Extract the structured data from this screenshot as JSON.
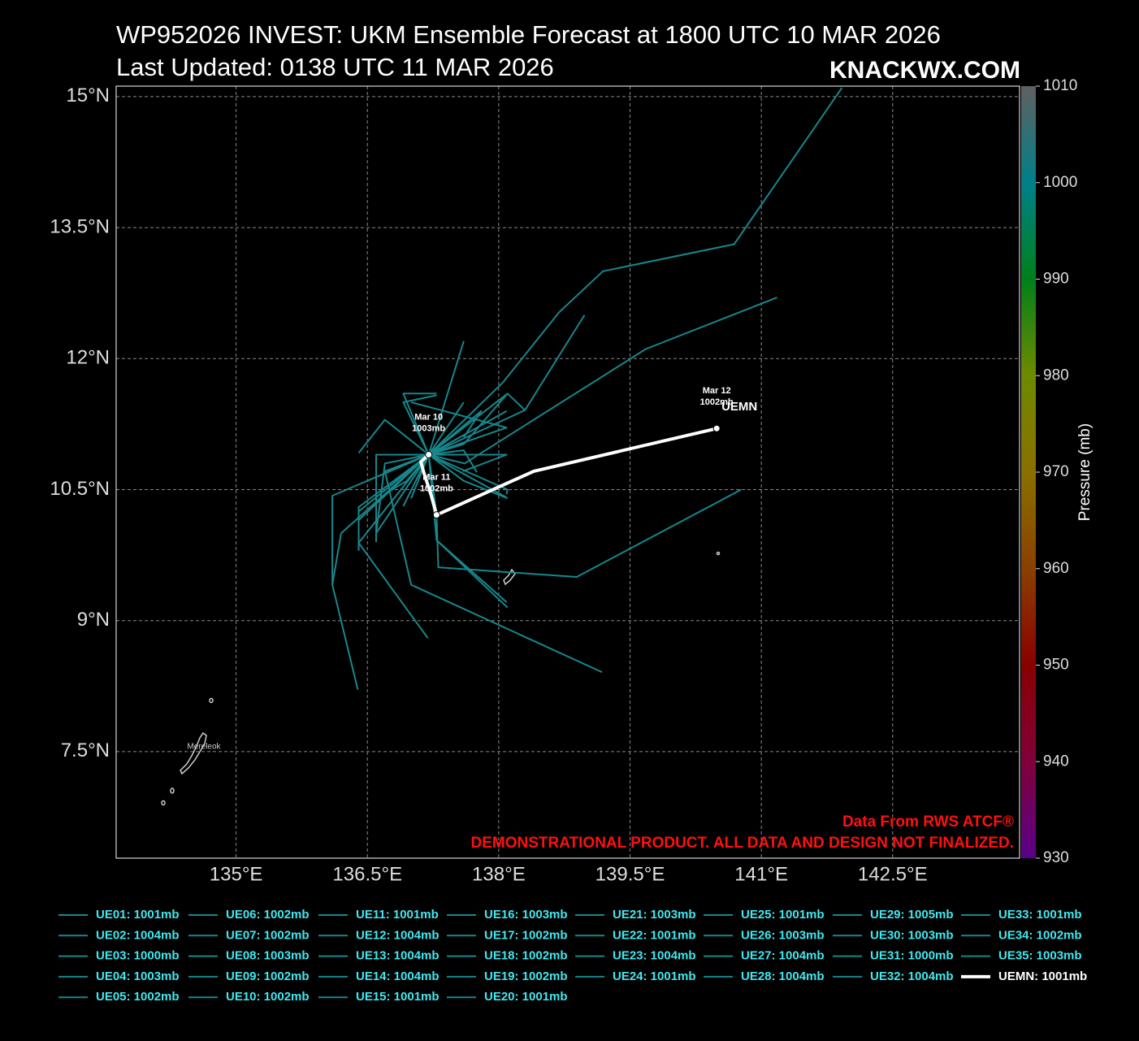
{
  "chart_data": {
    "type": "map",
    "title": "WP952026 INVEST: UKM Ensemble Forecast at 1800 UTC 10 MAR 2026",
    "subtitle": "Last Updated: 0138 UTC 11 MAR 2026",
    "brand": "KNACKWX.COM",
    "notes": [
      "Data From RWS ATCF®",
      "DEMONSTRATIONAL PRODUCT. ALL DATA AND DESIGN NOT FINALIZED."
    ],
    "map_labels": [
      "Mereleok"
    ],
    "xlim": [
      133.63,
      143.95
    ],
    "ylim": [
      6.28,
      15.12
    ],
    "xticks": [
      {
        "value": 135,
        "label": "135°E"
      },
      {
        "value": 136.5,
        "label": "136.5°E"
      },
      {
        "value": 138,
        "label": "138°E"
      },
      {
        "value": 139.5,
        "label": "139.5°E"
      },
      {
        "value": 141,
        "label": "141°E"
      },
      {
        "value": 142.5,
        "label": "142.5°E"
      }
    ],
    "yticks": [
      {
        "value": 7.5,
        "label": "7.5°N"
      },
      {
        "value": 9,
        "label": "9°N"
      },
      {
        "value": 10.5,
        "label": "10.5°N"
      },
      {
        "value": 12,
        "label": "12°N"
      },
      {
        "value": 13.5,
        "label": "13.5°N"
      },
      {
        "value": 15,
        "label": "15°N"
      }
    ],
    "grid": true,
    "colorbar": {
      "label": "Pressure (mb)",
      "lim": [
        930,
        1010
      ],
      "ticks": [
        930,
        940,
        950,
        960,
        970,
        980,
        990,
        1000,
        1010
      ],
      "colors": [
        "#5a008a",
        "#80003a",
        "#8a0000",
        "#8a4000",
        "#8a7000",
        "#6e8a00",
        "#00801a",
        "#00808a",
        "#606060"
      ]
    },
    "series": [
      {
        "name": "UE01: 1001mb",
        "color": "#17878c",
        "x": [
          137.2,
          138.05,
          138.69,
          139.19,
          140.69,
          141.92
        ],
        "values": [
          10.9,
          11.73,
          12.53,
          13.0,
          13.31,
          15.1
        ]
      },
      {
        "name": "UE02: 1004mb",
        "color": "#17878c",
        "x": [
          137.2,
          137.61,
          139.68,
          141.18
        ],
        "values": [
          10.9,
          10.8,
          12.11,
          12.7
        ]
      },
      {
        "name": "UE03: 1000mb",
        "color": "#17878c",
        "x": [
          137.2,
          137.29,
          137.31,
          138.89,
          140.77
        ],
        "values": [
          10.9,
          10.21,
          9.61,
          9.5,
          10.5
        ]
      },
      {
        "name": "UE04: 1003mb",
        "color": "#17878c",
        "x": [
          137.2,
          137.29,
          137.29,
          138.09
        ],
        "values": [
          10.9,
          10.21,
          9.92,
          9.21
        ]
      },
      {
        "name": "UE05: 1002mb",
        "color": "#17878c",
        "x": [
          137.2,
          136.7,
          137.0,
          139.18
        ],
        "values": [
          10.9,
          10.71,
          9.41,
          8.41
        ]
      },
      {
        "name": "UE06: 1002mb",
        "color": "#17878c",
        "x": [
          137.2,
          136.1,
          136.1,
          136.39
        ],
        "values": [
          10.9,
          10.43,
          9.41,
          8.21
        ]
      },
      {
        "name": "UE07: 1002mb",
        "color": "#17878c",
        "x": [
          137.2,
          136.4,
          137.19
        ],
        "values": [
          10.9,
          9.89,
          8.8
        ]
      },
      {
        "name": "UE08: 1003mb",
        "color": "#17878c",
        "x": [
          137.2,
          136.7,
          136.4
        ],
        "values": [
          10.9,
          11.3,
          10.92
        ]
      },
      {
        "name": "UE09: 1002mb",
        "color": "#17878c",
        "x": [
          137.2,
          137.6
        ],
        "values": [
          10.9,
          12.2
        ]
      },
      {
        "name": "UE10: 1002mb",
        "color": "#17878c",
        "x": [
          137.2,
          138.3,
          138.98
        ],
        "values": [
          10.9,
          11.41,
          12.5
        ]
      },
      {
        "name": "UE11: 1001mb",
        "color": "#17878c",
        "x": [
          137.2,
          138.09,
          137.0
        ],
        "values": [
          10.9,
          11.21,
          11.5
        ]
      },
      {
        "name": "UE12: 1004mb",
        "color": "#17878c",
        "x": [
          137.2,
          136.91,
          137.29
        ],
        "values": [
          10.9,
          11.6,
          11.6
        ]
      },
      {
        "name": "UE13: 1004mb",
        "color": "#17878c",
        "x": [
          137.2,
          136.6,
          136.6
        ],
        "values": [
          10.9,
          10.9,
          9.9
        ]
      },
      {
        "name": "UE14: 1004mb",
        "color": "#17878c",
        "x": [
          137.2,
          138.09,
          137.59
        ],
        "values": [
          10.9,
          10.9,
          10.71
        ]
      },
      {
        "name": "UE15: 1001mb",
        "color": "#17878c",
        "x": [
          137.2,
          136.2,
          136.1
        ],
        "values": [
          10.9,
          10.0,
          9.41
        ]
      },
      {
        "name": "UE16: 1003mb",
        "color": "#17878c",
        "x": [
          137.2,
          138.09
        ],
        "values": [
          10.9,
          11.4
        ]
      },
      {
        "name": "UE17: 1002mb",
        "color": "#17878c",
        "x": [
          137.2,
          138.09
        ],
        "values": [
          10.9,
          10.41
        ]
      },
      {
        "name": "UE18: 1002mb",
        "color": "#17878c",
        "x": [
          137.2,
          136.91
        ],
        "values": [
          10.9,
          10.31
        ]
      },
      {
        "name": "UE19: 1002mb",
        "color": "#17878c",
        "x": [
          137.2,
          137.6
        ],
        "values": [
          10.9,
          11.5
        ]
      },
      {
        "name": "UE20: 1001mb",
        "color": "#17878c",
        "x": [
          137.2,
          136.4
        ],
        "values": [
          10.9,
          10.15
        ]
      },
      {
        "name": "UE21: 1003mb",
        "color": "#17878c",
        "x": [
          137.2,
          137.6,
          138.1
        ],
        "values": [
          10.9,
          11.02,
          11.6
        ]
      },
      {
        "name": "UE22: 1001mb",
        "color": "#17878c",
        "x": [
          137.2,
          138.1,
          138.3
        ],
        "values": [
          10.9,
          11.6,
          11.41
        ]
      },
      {
        "name": "UE23: 1004mb",
        "color": "#17878c",
        "x": [
          137.2,
          136.4,
          136.4
        ],
        "values": [
          10.9,
          10.3,
          9.85
        ]
      },
      {
        "name": "UE24: 1001mb",
        "color": "#17878c",
        "x": [
          137.2,
          136.7,
          136.6
        ],
        "values": [
          10.9,
          10.8,
          10.0
        ]
      },
      {
        "name": "UE25: 1001mb",
        "color": "#17878c",
        "x": [
          137.2,
          136.91,
          137.29
        ],
        "values": [
          10.9,
          11.5,
          11.58
        ]
      },
      {
        "name": "UE26: 1003mb",
        "color": "#17878c",
        "x": [
          137.2,
          137.6,
          137.75
        ],
        "values": [
          10.9,
          10.95,
          10.7
        ]
      },
      {
        "name": "UE27: 1004mb",
        "color": "#17878c",
        "x": [
          137.2,
          136.4,
          136.4
        ],
        "values": [
          10.9,
          10.25,
          9.8
        ]
      },
      {
        "name": "UE28: 1004mb",
        "color": "#17878c",
        "x": [
          137.2,
          136.6
        ],
        "values": [
          10.9,
          10.0
        ]
      },
      {
        "name": "UE29: 1005mb",
        "color": "#17878c",
        "x": [
          137.2,
          138.1,
          138.09
        ],
        "values": [
          10.9,
          10.5,
          10.45
        ]
      },
      {
        "name": "UE30: 1003mb",
        "color": "#17878c",
        "x": [
          137.2,
          137.0
        ],
        "values": [
          10.9,
          10.4
        ]
      },
      {
        "name": "UE31: 1000mb",
        "color": "#17878c",
        "x": [
          137.2,
          137.29,
          138.1
        ],
        "values": [
          10.9,
          9.92,
          9.15
        ]
      },
      {
        "name": "UE32: 1004mb",
        "color": "#17878c",
        "x": [
          137.2,
          136.5
        ],
        "values": [
          10.9,
          10.6
        ]
      },
      {
        "name": "UE33: 1001mb",
        "color": "#17878c",
        "x": [
          137.2,
          137.8,
          137.6
        ],
        "values": [
          10.9,
          11.4,
          11.1
        ]
      },
      {
        "name": "UE34: 1002mb",
        "color": "#17878c",
        "x": [
          137.2,
          137.6,
          138.1
        ],
        "values": [
          10.9,
          10.6,
          10.4
        ]
      },
      {
        "name": "UE35: 1003mb",
        "color": "#17878c",
        "x": [
          137.2,
          136.95,
          136.7
        ],
        "values": [
          10.9,
          10.6,
          10.45
        ]
      },
      {
        "name": "UEMN: 1001mb",
        "label": "UEMN",
        "color": "#ffffff",
        "x": [
          137.2,
          137.11,
          137.14,
          137.23,
          137.29,
          138.4,
          140.49
        ],
        "values": [
          10.9,
          10.82,
          10.71,
          10.43,
          10.21,
          10.71,
          11.2
        ],
        "marker_labels": [
          [
            "Mar 10",
            "1003mb"
          ],
          null,
          null,
          null,
          [
            "Mar 11",
            "1002mb"
          ],
          null,
          [
            "Mar 12",
            "1002mb"
          ]
        ]
      }
    ]
  }
}
